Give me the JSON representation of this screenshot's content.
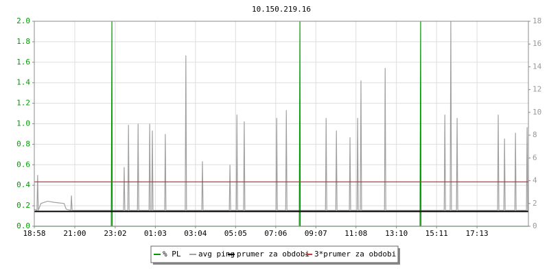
{
  "chart_data": {
    "type": "line",
    "title": "10.150.219.16",
    "xlim": [
      0,
      1490
    ],
    "xticks": [
      {
        "value": 0,
        "label": "18:58"
      },
      {
        "value": 122,
        "label": "21:00"
      },
      {
        "value": 244,
        "label": "23:02"
      },
      {
        "value": 365,
        "label": "01:03"
      },
      {
        "value": 486,
        "label": "03:04"
      },
      {
        "value": 607,
        "label": "05:05"
      },
      {
        "value": 728,
        "label": "07:06"
      },
      {
        "value": 849,
        "label": "09:07"
      },
      {
        "value": 970,
        "label": "11:08"
      },
      {
        "value": 1092,
        "label": "13:10"
      },
      {
        "value": 1213,
        "label": "15:11"
      },
      {
        "value": 1335,
        "label": "17:13"
      }
    ],
    "ylim": [
      0,
      2
    ],
    "yticks": [
      {
        "value": 0,
        "label": "0.0"
      },
      0.2,
      0.4,
      0.6,
      0.8,
      {
        "value": 1,
        "label": "1.0"
      },
      1.2,
      1.4,
      1.6,
      1.8,
      {
        "value": 2,
        "label": "2.0"
      }
    ],
    "y2lim": [
      0,
      18
    ],
    "y2ticks": [
      0,
      2,
      4,
      6,
      8,
      10,
      12,
      14,
      16,
      18
    ],
    "grid": true,
    "series": [
      {
        "name": "% PL",
        "color": "#009900",
        "x": [
          0,
          232,
          233,
          234,
          235,
          799,
          800,
          801,
          802,
          1163,
          1164,
          1165,
          1166,
          1490
        ],
        "values": [
          0,
          0,
          1,
          2,
          0,
          0,
          1,
          2,
          0,
          0,
          1,
          2,
          0,
          0
        ]
      },
      {
        "name": "avg ping",
        "color": "#a0a0a0",
        "axis": "y2",
        "x": [
          0,
          8,
          10,
          12,
          20,
          40,
          60,
          90,
          96,
          110,
          112,
          114,
          269,
          271,
          273,
          282,
          284,
          286,
          311,
          313,
          315,
          346,
          348,
          350,
          354,
          356,
          358,
          393,
          395,
          397,
          455,
          457,
          459,
          505,
          507,
          509,
          588,
          590,
          592,
          609,
          611,
          613,
          631,
          633,
          635,
          729,
          731,
          733,
          758,
          760,
          762,
          878,
          880,
          882,
          909,
          911,
          913,
          950,
          952,
          954,
          973,
          975,
          977,
          983,
          985,
          987,
          1056,
          1058,
          1060,
          1236,
          1238,
          1240,
          1254,
          1256,
          1258,
          1273,
          1275,
          1277,
          1397,
          1399,
          1401,
          1416,
          1418,
          1420,
          1449,
          1451,
          1453,
          1484,
          1486,
          1488,
          1490
        ],
        "values": [
          1.5,
          1.4,
          4.5,
          1.4,
          2,
          2.2,
          2.1,
          2,
          1.5,
          1.4,
          2.7,
          1.4,
          1.4,
          5.2,
          1.4,
          1.4,
          8.9,
          1.4,
          1.4,
          9,
          1.4,
          1.4,
          9,
          1.4,
          1.4,
          8.4,
          1.4,
          1.4,
          8.1,
          1.4,
          1.4,
          15,
          1.4,
          1.4,
          5.7,
          1.4,
          1.4,
          5.4,
          1.4,
          1.4,
          9.8,
          1.4,
          1.4,
          9.2,
          1.4,
          1.4,
          9.5,
          1.4,
          1.4,
          10.2,
          1.4,
          1.4,
          9.5,
          1.4,
          1.4,
          8.4,
          1.4,
          1.4,
          7.8,
          1.4,
          1.4,
          9.5,
          1.4,
          1.4,
          12.8,
          1.4,
          1.4,
          13.9,
          1.4,
          1.4,
          9.8,
          1.4,
          1.4,
          18,
          1.4,
          1.4,
          9.5,
          1.4,
          1.4,
          9.8,
          1.4,
          1.4,
          7.7,
          1.4,
          1.4,
          8.2,
          1.4,
          1.4,
          8.7,
          1.4,
          1.5
        ]
      },
      {
        "name": "prumer za obdobi",
        "color": "#000000",
        "axis": "y2",
        "x": [
          0,
          1490
        ],
        "values": [
          1.3,
          1.3
        ]
      },
      {
        "name": "3*prumer za obdobi",
        "color": "#c83232",
        "axis": "y2",
        "x": [
          0,
          1490
        ],
        "values": [
          3.9,
          3.9
        ]
      }
    ]
  }
}
